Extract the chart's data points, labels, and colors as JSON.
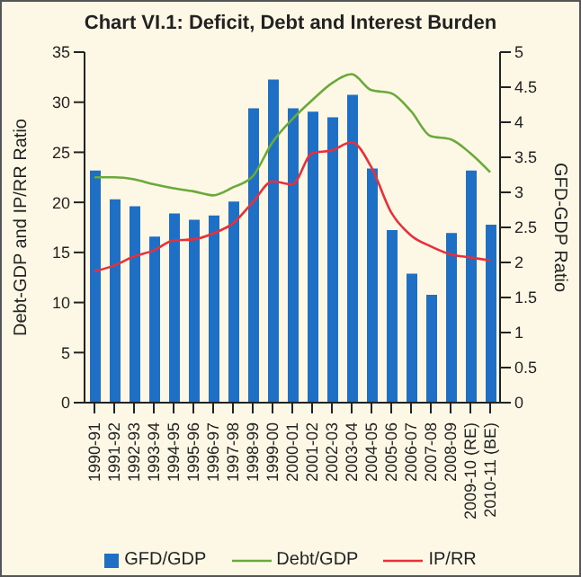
{
  "chart_data": {
    "type": "bar",
    "title": "Chart VI.1: Deficit, Debt and Interest Burden",
    "ylabel": "Debt-GDP and  IP/RR Ratio",
    "y2label": "GFD-GDP Ratio",
    "categories": [
      "1990-91",
      "1991-92",
      "1992-93",
      "1993-94",
      "1994-95",
      "1995-96",
      "1996-97",
      "1997-98",
      "1998-99",
      "1999-00",
      "2000-01",
      "2001-02",
      "2002-03",
      "2003-04",
      "2004-05",
      "2005-06",
      "2006-07",
      "2007-08",
      "2008-09",
      "2009-10 (RE)",
      "2010-11 (BE)"
    ],
    "series": [
      {
        "name": "GFD/GDP",
        "axis": "y2",
        "color": "#1f6fc5",
        "values": [
          3.31,
          2.9,
          2.8,
          2.37,
          2.7,
          2.61,
          2.67,
          2.87,
          4.2,
          4.61,
          4.2,
          4.15,
          4.07,
          4.39,
          3.34,
          2.46,
          1.84,
          1.54,
          2.42,
          3.31,
          2.54
        ]
      },
      {
        "name": "Debt/GDP",
        "type": "line",
        "color": "#6aaa3a",
        "values": [
          22.5,
          22.5,
          22.3,
          21.8,
          21.4,
          21.1,
          20.7,
          21.5,
          22.6,
          26,
          28.3,
          30.2,
          31.9,
          32.8,
          31.2,
          30.9,
          29.1,
          26.6,
          26.3,
          24.9,
          23
        ]
      },
      {
        "name": "IP/RR",
        "type": "line",
        "color": "#e8303a",
        "values": [
          13.1,
          13.7,
          14.6,
          15.2,
          16.2,
          16.3,
          16.9,
          17.9,
          20,
          22.1,
          21.8,
          24.9,
          25.2,
          26,
          23.5,
          19,
          16.7,
          15.6,
          14.8,
          14.5,
          14.2
        ]
      }
    ],
    "ylim": [
      0,
      35
    ],
    "yticks": [
      0,
      5,
      10,
      15,
      20,
      25,
      30,
      35
    ],
    "y2lim": [
      0,
      5
    ],
    "y2ticks": [
      0,
      0.5,
      1,
      1.5,
      2,
      2.5,
      3,
      3.5,
      4,
      4.5,
      5
    ],
    "legend": "bottom",
    "marker": "none"
  }
}
